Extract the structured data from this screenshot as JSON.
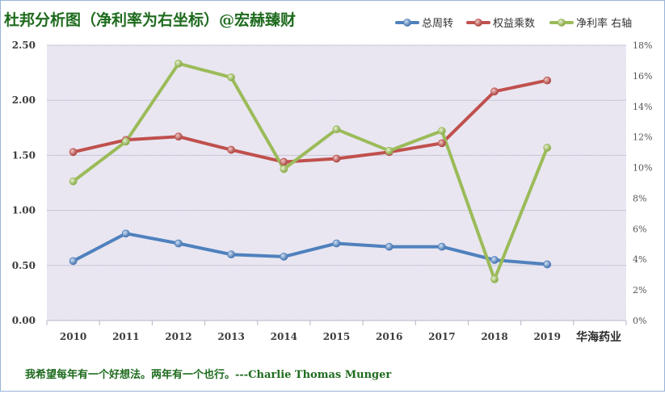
{
  "chart_data": {
    "type": "line",
    "title": "杜邦分析图（净利率为右坐标）@宏赫臻财",
    "categories": [
      "2010",
      "2011",
      "2012",
      "2013",
      "2014",
      "2015",
      "2016",
      "2017",
      "2018",
      "2019"
    ],
    "series": [
      {
        "name": "总周转",
        "axis": "left",
        "color": "#4f81bd",
        "values": [
          0.54,
          0.79,
          0.7,
          0.6,
          0.58,
          0.7,
          0.67,
          0.67,
          0.55,
          0.51
        ]
      },
      {
        "name": "权益乘数",
        "axis": "left",
        "color": "#c0504d",
        "values": [
          1.53,
          1.64,
          1.67,
          1.55,
          1.44,
          1.47,
          1.53,
          1.61,
          2.08,
          2.18
        ]
      },
      {
        "name": "净利率 右轴",
        "axis": "right",
        "color": "#9bbb59",
        "values": [
          9.1,
          11.7,
          16.8,
          15.9,
          9.9,
          12.5,
          11.1,
          12.4,
          2.7,
          11.3
        ]
      }
    ],
    "y_left": {
      "min": 0,
      "max": 2.5,
      "ticks": [
        "0.00",
        "0.50",
        "1.00",
        "1.50",
        "2.00",
        "2.50"
      ]
    },
    "y_right": {
      "min": 0,
      "max": 18,
      "ticks": [
        "0%",
        "2%",
        "4%",
        "6%",
        "8%",
        "10%",
        "12%",
        "14%",
        "16%",
        "18%"
      ]
    },
    "company_label": "华海药业",
    "legend_position": "top-right",
    "grid": true
  },
  "footer": {
    "quote": "我希望每年有一个好想法。两年有一个也行。---Charlie Thomas  Munger"
  },
  "colors": {
    "title": "#1e6b1e",
    "footer": "#1e6b1e",
    "frame_border": "#9ab3d6",
    "plot_bg": "#ebe8f2"
  }
}
